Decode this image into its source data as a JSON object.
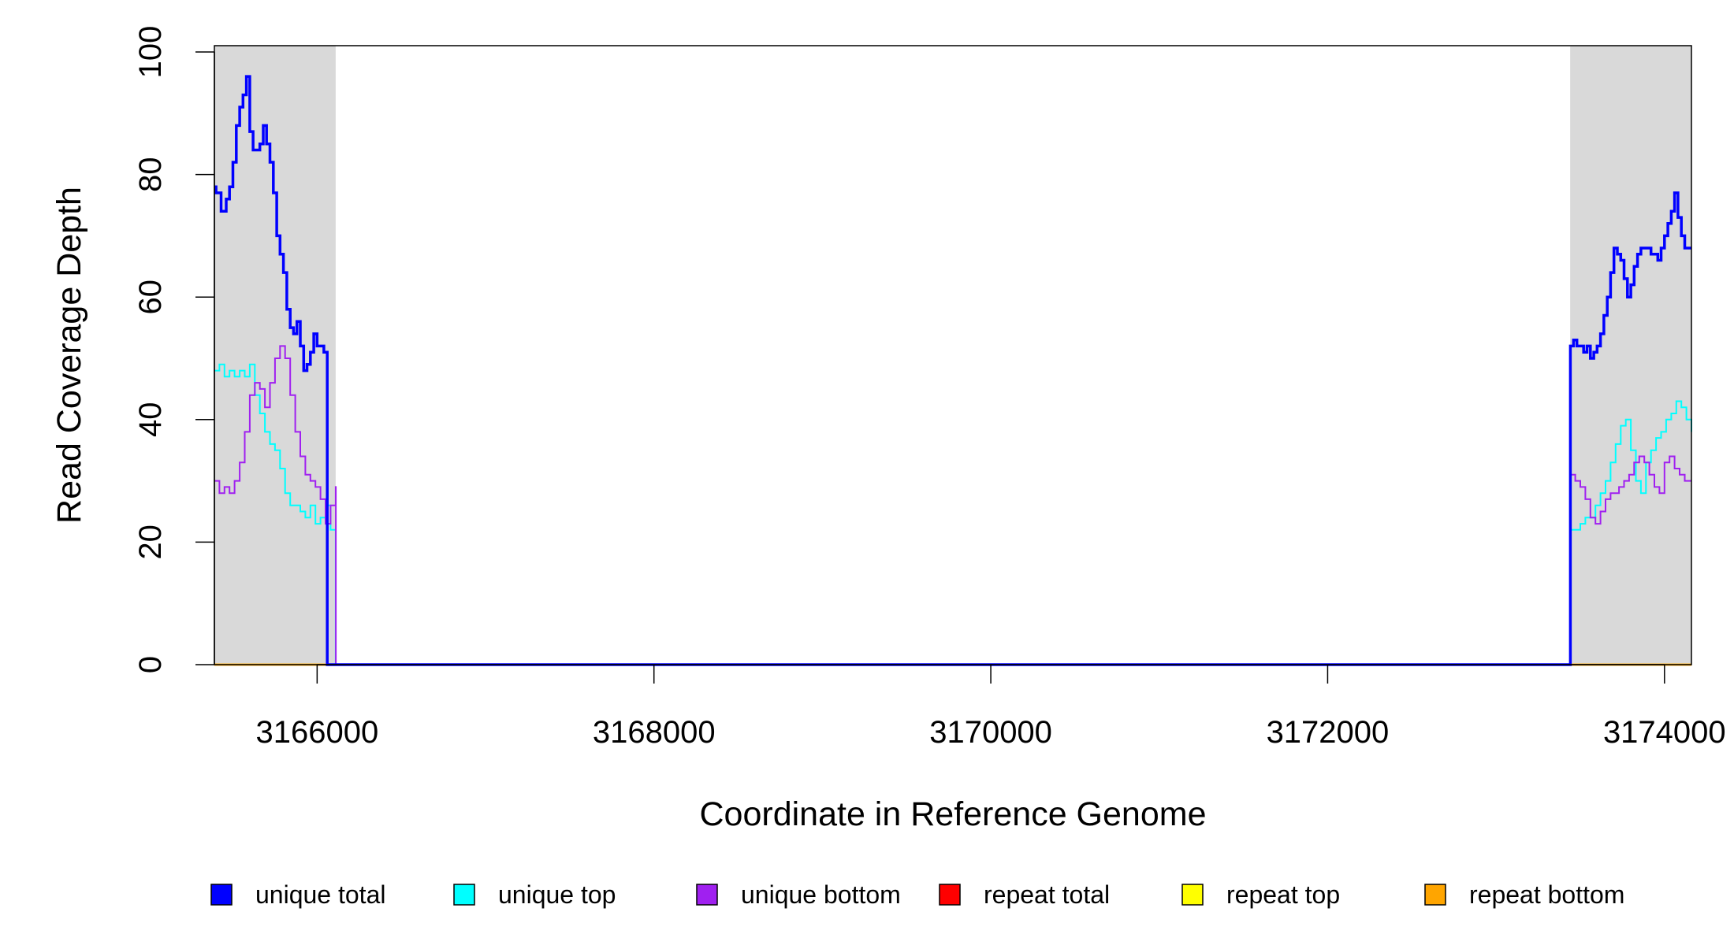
{
  "chart_data": {
    "type": "line",
    "title": "",
    "xlabel": "Coordinate in Reference Genome",
    "ylabel": "Read Coverage Depth",
    "xlim": [
      3165390,
      3174160
    ],
    "ylim": [
      0,
      100
    ],
    "x_ticks": [
      3166000,
      3168000,
      3170000,
      3172000,
      3174000
    ],
    "y_ticks": [
      0,
      20,
      40,
      60,
      80,
      100
    ],
    "x_tick_labels": [
      "3166000",
      "3168000",
      "3170000",
      "3172000",
      "3174000"
    ],
    "y_tick_labels": [
      "0",
      "20",
      "40",
      "60",
      "80",
      "100"
    ],
    "grid": false,
    "legend_position": "bottom",
    "shaded_regions": [
      {
        "x_start": 3165390,
        "x_end": 3166110,
        "color": "#d9d9d9"
      },
      {
        "x_start": 3173440,
        "x_end": 3174160,
        "color": "#d9d9d9"
      }
    ],
    "series": [
      {
        "name": "unique total",
        "color": "#0000ff",
        "x": [
          3165390,
          3165400,
          3165430,
          3165460,
          3165480,
          3165500,
          3165520,
          3165540,
          3165560,
          3165580,
          3165600,
          3165620,
          3165640,
          3165660,
          3165680,
          3165700,
          3165720,
          3165740,
          3165760,
          3165780,
          3165800,
          3165820,
          3165840,
          3165860,
          3165880,
          3165900,
          3165920,
          3165940,
          3165960,
          3165980,
          3166000,
          3166020,
          3166040,
          3166060,
          3166080,
          3166100,
          3166110,
          3166111,
          3173440,
          3173441,
          3173460,
          3173480,
          3173500,
          3173520,
          3173540,
          3173560,
          3173580,
          3173600,
          3173620,
          3173640,
          3173660,
          3173680,
          3173700,
          3173720,
          3173740,
          3173760,
          3173780,
          3173800,
          3173820,
          3173840,
          3173860,
          3173880,
          3173900,
          3173920,
          3173940,
          3173960,
          3173980,
          3174000,
          3174020,
          3174040,
          3174060,
          3174080,
          3174100,
          3174120,
          3174140,
          3174160
        ],
        "values": [
          78,
          77,
          74,
          76,
          78,
          82,
          88,
          91,
          93,
          96,
          87,
          84,
          84,
          85,
          88,
          85,
          82,
          77,
          70,
          67,
          64,
          58,
          55,
          54,
          56,
          52,
          48,
          49,
          51,
          54,
          52,
          52,
          51,
          0,
          0,
          0,
          0,
          0,
          0,
          52,
          53,
          52,
          52,
          51,
          52,
          50,
          51,
          52,
          54,
          57,
          60,
          64,
          68,
          67,
          66,
          63,
          60,
          62,
          65,
          67,
          68,
          68,
          68,
          67,
          67,
          66,
          68,
          70,
          72,
          74,
          77,
          73,
          70,
          68,
          68,
          68
        ]
      },
      {
        "name": "unique top",
        "color": "#00ffff",
        "x": [
          3165390,
          3165420,
          3165450,
          3165480,
          3165510,
          3165540,
          3165570,
          3165600,
          3165630,
          3165660,
          3165690,
          3165720,
          3165750,
          3165780,
          3165810,
          3165840,
          3165870,
          3165900,
          3165930,
          3165960,
          3165990,
          3166020,
          3166050,
          3166080,
          3166110,
          3166111,
          3173440,
          3173441,
          3173470,
          3173500,
          3173530,
          3173560,
          3173590,
          3173620,
          3173650,
          3173680,
          3173710,
          3173740,
          3173770,
          3173800,
          3173830,
          3173860,
          3173890,
          3173920,
          3173950,
          3173980,
          3174010,
          3174040,
          3174070,
          3174100,
          3174130,
          3174160
        ],
        "values": [
          48,
          49,
          47,
          48,
          47,
          48,
          47,
          49,
          44,
          41,
          38,
          36,
          35,
          32,
          28,
          26,
          26,
          25,
          24,
          26,
          23,
          24,
          26,
          22,
          0,
          0,
          0,
          22,
          22,
          23,
          24,
          24,
          26,
          28,
          30,
          33,
          36,
          39,
          40,
          35,
          30,
          28,
          33,
          35,
          37,
          38,
          40,
          41,
          43,
          42,
          40,
          38
        ]
      },
      {
        "name": "unique bottom",
        "color": "#a020f0",
        "x": [
          3165390,
          3165420,
          3165450,
          3165480,
          3165510,
          3165540,
          3165570,
          3165600,
          3165630,
          3165660,
          3165690,
          3165720,
          3165750,
          3165780,
          3165810,
          3165840,
          3165870,
          3165900,
          3165930,
          3165960,
          3165990,
          3166020,
          3166050,
          3166080,
          3166110,
          3166111,
          3173440,
          3173441,
          3173470,
          3173500,
          3173530,
          3173560,
          3173590,
          3173620,
          3173650,
          3173680,
          3173700,
          3173730,
          3173760,
          3173790,
          3173820,
          3173850,
          3173880,
          3173910,
          3173940,
          3173970,
          3174000,
          3174030,
          3174060,
          3174090,
          3174120,
          3174160
        ],
        "values": [
          30,
          28,
          29,
          28,
          30,
          33,
          38,
          44,
          46,
          45,
          42,
          46,
          50,
          52,
          50,
          44,
          38,
          34,
          31,
          30,
          29,
          27,
          23,
          26,
          29,
          0,
          0,
          31,
          30,
          29,
          27,
          24,
          23,
          25,
          27,
          28,
          28,
          29,
          30,
          31,
          33,
          34,
          33,
          31,
          29,
          28,
          33,
          34,
          32,
          31,
          30,
          30
        ]
      },
      {
        "name": "repeat total",
        "color": "#ff0000",
        "x": [
          3165390,
          3174160
        ],
        "values": [
          0,
          0
        ]
      },
      {
        "name": "repeat top",
        "color": "#ffff00",
        "x": [
          3165390,
          3174160
        ],
        "values": [
          0,
          0
        ]
      },
      {
        "name": "repeat bottom",
        "color": "#ffa500",
        "x": [
          3165390,
          3174160
        ],
        "values": [
          0,
          0
        ]
      }
    ]
  }
}
